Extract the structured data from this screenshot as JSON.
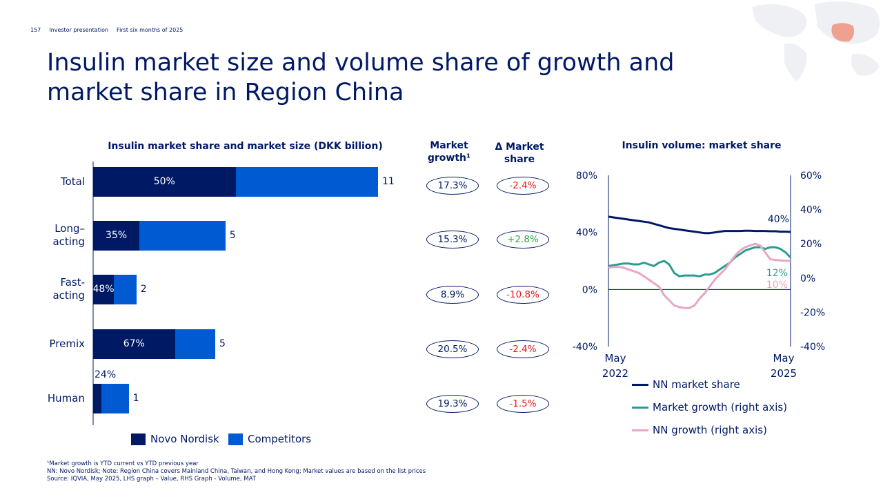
{
  "header": {
    "page_number": "157",
    "deck": "Investor presentation",
    "period": "First six months of 2025"
  },
  "title": "Insulin market size and volume share of growth and market share in Region China",
  "colors": {
    "navy": "#001965",
    "competitor_blue": "#005ad2",
    "teal": "#2a9d8f",
    "pink": "#e8a5c4",
    "negative_red": "#e6191e",
    "positive_green": "#2aa84a"
  },
  "bar_chart": {
    "title": "Insulin market share and market size (DKK billion)",
    "legend": {
      "nn": "Novo Nordisk",
      "comp": "Competitors"
    }
  },
  "columns": {
    "market_growth_header_line1": "Market",
    "market_growth_header_line2": "growth¹",
    "delta_share_header_line1": "Δ Market",
    "delta_share_header_line2": "share"
  },
  "chart_data": [
    {
      "type": "bar",
      "title": "Insulin market share and market size (DKK billion)",
      "stacked": true,
      "categories": [
        "Total",
        "Long– acting",
        "Fast- acting",
        "Premix",
        "Human"
      ],
      "category_lines": [
        [
          "Total"
        ],
        [
          "Long–",
          "acting"
        ],
        [
          "Fast-",
          "acting"
        ],
        [
          "Premix"
        ],
        [
          "Human"
        ]
      ],
      "series": [
        {
          "name": "Novo Nordisk",
          "share_pct": [
            50,
            35,
            48,
            67,
            24
          ],
          "share_labels": [
            "50%",
            "35%",
            "48%",
            "67%",
            "24%"
          ]
        },
        {
          "name": "Competitors"
        }
      ],
      "market_size": [
        11,
        5,
        2,
        5,
        1
      ],
      "market_size_labels": [
        "11",
        "5",
        "2",
        "5",
        "1"
      ],
      "market_size_exact": [
        11.2,
        5.2,
        1.7,
        4.8,
        1.4
      ],
      "market_growth": [
        "17.3%",
        "15.3%",
        "8.9%",
        "20.5%",
        "19.3%"
      ],
      "delta_market_share": [
        "-2.4%",
        "+2.8%",
        "-10.8%",
        "-2.4%",
        "-1.5%"
      ],
      "xlabel": "",
      "ylabel": "DKK billion",
      "xlim": [
        0,
        11.2
      ]
    },
    {
      "type": "line",
      "title": "Insulin volume: market share",
      "x_start": "May 2022",
      "x_end": "May 2025",
      "x_tick_labels": [
        [
          "May",
          "2022"
        ],
        [
          "May",
          "2025"
        ]
      ],
      "left_axis": {
        "ylim": [
          -40,
          80
        ],
        "ticks": [
          -40,
          0,
          40,
          80
        ],
        "tick_labels": [
          "-40%",
          "0%",
          "40%",
          "80%"
        ]
      },
      "right_axis": {
        "ylim": [
          -40,
          60
        ],
        "ticks": [
          -40,
          -20,
          0,
          20,
          40,
          60
        ],
        "tick_labels": [
          "-40%",
          "-20%",
          "0%",
          "20%",
          "40%",
          "60%"
        ]
      },
      "series": [
        {
          "name": "NN market share",
          "axis": "left",
          "end_label": "40%",
          "values": [
            51,
            50.5,
            50,
            49.5,
            49,
            48.5,
            48,
            47.5,
            47,
            46,
            45,
            44,
            43,
            42.5,
            42,
            41.5,
            41,
            40.5,
            40,
            39.5,
            39.5,
            40,
            40.5,
            41,
            41,
            41,
            41,
            41.2,
            41.2,
            41,
            41,
            41,
            40.8,
            40.8,
            40.5,
            40.5,
            40.3
          ]
        },
        {
          "name": "Market growth (right axis)",
          "axis": "right",
          "end_label": "12%",
          "values": [
            7,
            7.5,
            8,
            8.5,
            8.5,
            8,
            8,
            9,
            8,
            7,
            9,
            10,
            8,
            3,
            1,
            1.5,
            1.5,
            1.5,
            1,
            2,
            2,
            3,
            5,
            7,
            9,
            12,
            14,
            16,
            17,
            18,
            18,
            17,
            18,
            18,
            17,
            15,
            12
          ]
        },
        {
          "name": "NN growth (right axis)",
          "axis": "right",
          "end_label": "10%",
          "values": [
            6,
            6.5,
            6.5,
            6,
            5,
            4,
            3,
            1,
            -1,
            -3,
            -5,
            -10,
            -13,
            -16,
            -17,
            -17.5,
            -17.5,
            -16,
            -12,
            -9,
            -5,
            -1,
            2,
            5,
            9,
            13,
            16,
            18,
            19,
            20,
            19,
            15,
            11,
            10.5,
            10.3,
            10.1,
            10
          ]
        }
      ]
    }
  ],
  "line_chart": {
    "title": "Insulin volume: market share",
    "legend": [
      "NN market share",
      "Market growth (right axis)",
      "NN growth (right axis)"
    ]
  },
  "footnotes": [
    "¹Market growth is YTD current vs YTD previous year",
    "NN: Novo Nordisk; Note: Region China covers Mainland China, Taiwan, and Hong Kong; Market values are based on the list prices",
    "Source: IQVIA, May 2025, LHS graph – Value, RHS Graph - Volume, MAT"
  ]
}
